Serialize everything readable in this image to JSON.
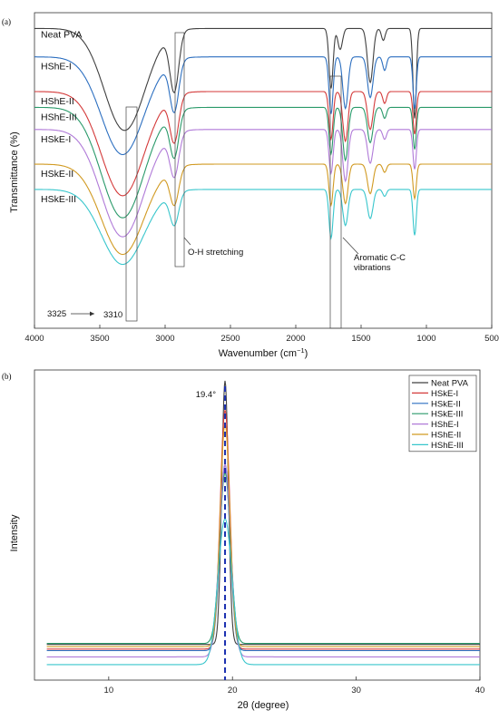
{
  "chart_data": [
    {
      "panel": "(a)",
      "type": "line",
      "xlabel": "Wavenumber (cm",
      "xlabel_sup": "−1",
      "xlabel_end": ")",
      "ylabel": "Transmittance (%)",
      "xlim": [
        4000,
        500
      ],
      "x_reversed": true,
      "xticks": [
        4000,
        3500,
        3000,
        2500,
        2000,
        1500,
        1000,
        500
      ],
      "grid": false,
      "series": [
        {
          "name": "Neat PVA",
          "color": "#404040",
          "baseline": 95,
          "peaks": [
            [
              3310,
              0.34,
              220
            ],
            [
              2930,
              0.2,
              48
            ],
            [
              1730,
              0.2,
              22
            ],
            [
              1660,
              0.07,
              25
            ],
            [
              1430,
              0.18,
              30
            ],
            [
              1330,
              0.04,
              20
            ],
            [
              1090,
              0.3,
              18
            ]
          ]
        },
        {
          "name": "HShE-I",
          "color": "#2c6fc0",
          "baseline": 86,
          "peaks": [
            [
              3325,
              0.36,
              230
            ],
            [
              2930,
              0.19,
              48
            ],
            [
              1730,
              0.21,
              22
            ],
            [
              1620,
              0.19,
              28
            ],
            [
              1430,
              0.15,
              30
            ],
            [
              1320,
              0.05,
              20
            ],
            [
              1090,
              0.19,
              18
            ]
          ]
        },
        {
          "name": "HShE-II",
          "color": "#d43a3a",
          "baseline": 75,
          "peaks": [
            [
              3325,
              0.44,
              230
            ],
            [
              2930,
              0.2,
              48
            ],
            [
              1730,
              0.2,
              22
            ],
            [
              1620,
              0.21,
              28
            ],
            [
              1430,
              0.16,
              30
            ],
            [
              1320,
              0.05,
              20
            ],
            [
              1090,
              0.18,
              18
            ]
          ]
        },
        {
          "name": "HShE-III",
          "color": "#2a9a6a",
          "baseline": 70,
          "peaks": [
            [
              3325,
              0.5,
              230
            ],
            [
              2930,
              0.21,
              48
            ],
            [
              1730,
              0.21,
              22
            ],
            [
              1620,
              0.24,
              28
            ],
            [
              1430,
              0.16,
              30
            ],
            [
              1320,
              0.05,
              20
            ],
            [
              1090,
              0.19,
              18
            ]
          ]
        },
        {
          "name": "HSkE-I",
          "color": "#b07ad8",
          "baseline": 63,
          "peaks": [
            [
              3325,
              0.54,
              230
            ],
            [
              2930,
              0.22,
              48
            ],
            [
              1730,
              0.22,
              22
            ],
            [
              1620,
              0.26,
              28
            ],
            [
              1430,
              0.17,
              30
            ],
            [
              1320,
              0.05,
              20
            ],
            [
              1090,
              0.2,
              18
            ]
          ]
        },
        {
          "name": "HSkE-II",
          "color": "#d19a22",
          "baseline": 52,
          "peaks": [
            [
              3325,
              0.55,
              230
            ],
            [
              2930,
              0.23,
              48
            ],
            [
              1730,
              0.25,
              22
            ],
            [
              1620,
              0.24,
              28
            ],
            [
              1430,
              0.18,
              30
            ],
            [
              1320,
              0.05,
              20
            ],
            [
              1090,
              0.21,
              18
            ]
          ]
        },
        {
          "name": "HSkE-III",
          "color": "#38c6cc",
          "baseline": 44,
          "peaks": [
            [
              3325,
              0.54,
              230
            ],
            [
              2930,
              0.24,
              48
            ],
            [
              1730,
              0.35,
              22
            ],
            [
              1620,
              0.26,
              28
            ],
            [
              1430,
              0.21,
              30
            ],
            [
              1320,
              0.05,
              20
            ],
            [
              1090,
              0.33,
              18
            ]
          ]
        }
      ],
      "annotations": {
        "oh": "O-H stretching",
        "aromatic_1": "Aromatic C-C",
        "aromatic_2": "vibrations",
        "shift_a": "3325",
        "shift_b": "3310"
      }
    },
    {
      "panel": "(b)",
      "type": "line",
      "xlabel": "2θ (degree)",
      "ylabel": "Intensity",
      "xlim": [
        4,
        40
      ],
      "xticks": [
        10,
        20,
        30,
        40
      ],
      "grid": false,
      "peak_label": "19.4°",
      "peak_position": 19.4,
      "legend_position": "top-right",
      "series": [
        {
          "name": "Neat PVA",
          "color": "#404040",
          "baseline": 0.115,
          "height": 0.85,
          "width": 0.38
        },
        {
          "name": "HSkE-I",
          "color": "#d43a3a",
          "baseline": 0.1,
          "height": 0.77,
          "width": 0.55
        },
        {
          "name": "HSkE-II",
          "color": "#2c6fc0",
          "baseline": 0.095,
          "height": 0.6,
          "width": 0.58
        },
        {
          "name": "HSkE-III",
          "color": "#2a9a6a",
          "baseline": 0.118,
          "height": 0.55,
          "width": 0.62
        },
        {
          "name": "HShE-I",
          "color": "#b07ad8",
          "baseline": 0.075,
          "height": 0.62,
          "width": 0.65
        },
        {
          "name": "HShE-II",
          "color": "#d19a22",
          "baseline": 0.108,
          "height": 0.72,
          "width": 0.55
        },
        {
          "name": "HShE-III",
          "color": "#38c6cc",
          "baseline": 0.05,
          "height": 0.47,
          "width": 0.8
        }
      ]
    }
  ]
}
